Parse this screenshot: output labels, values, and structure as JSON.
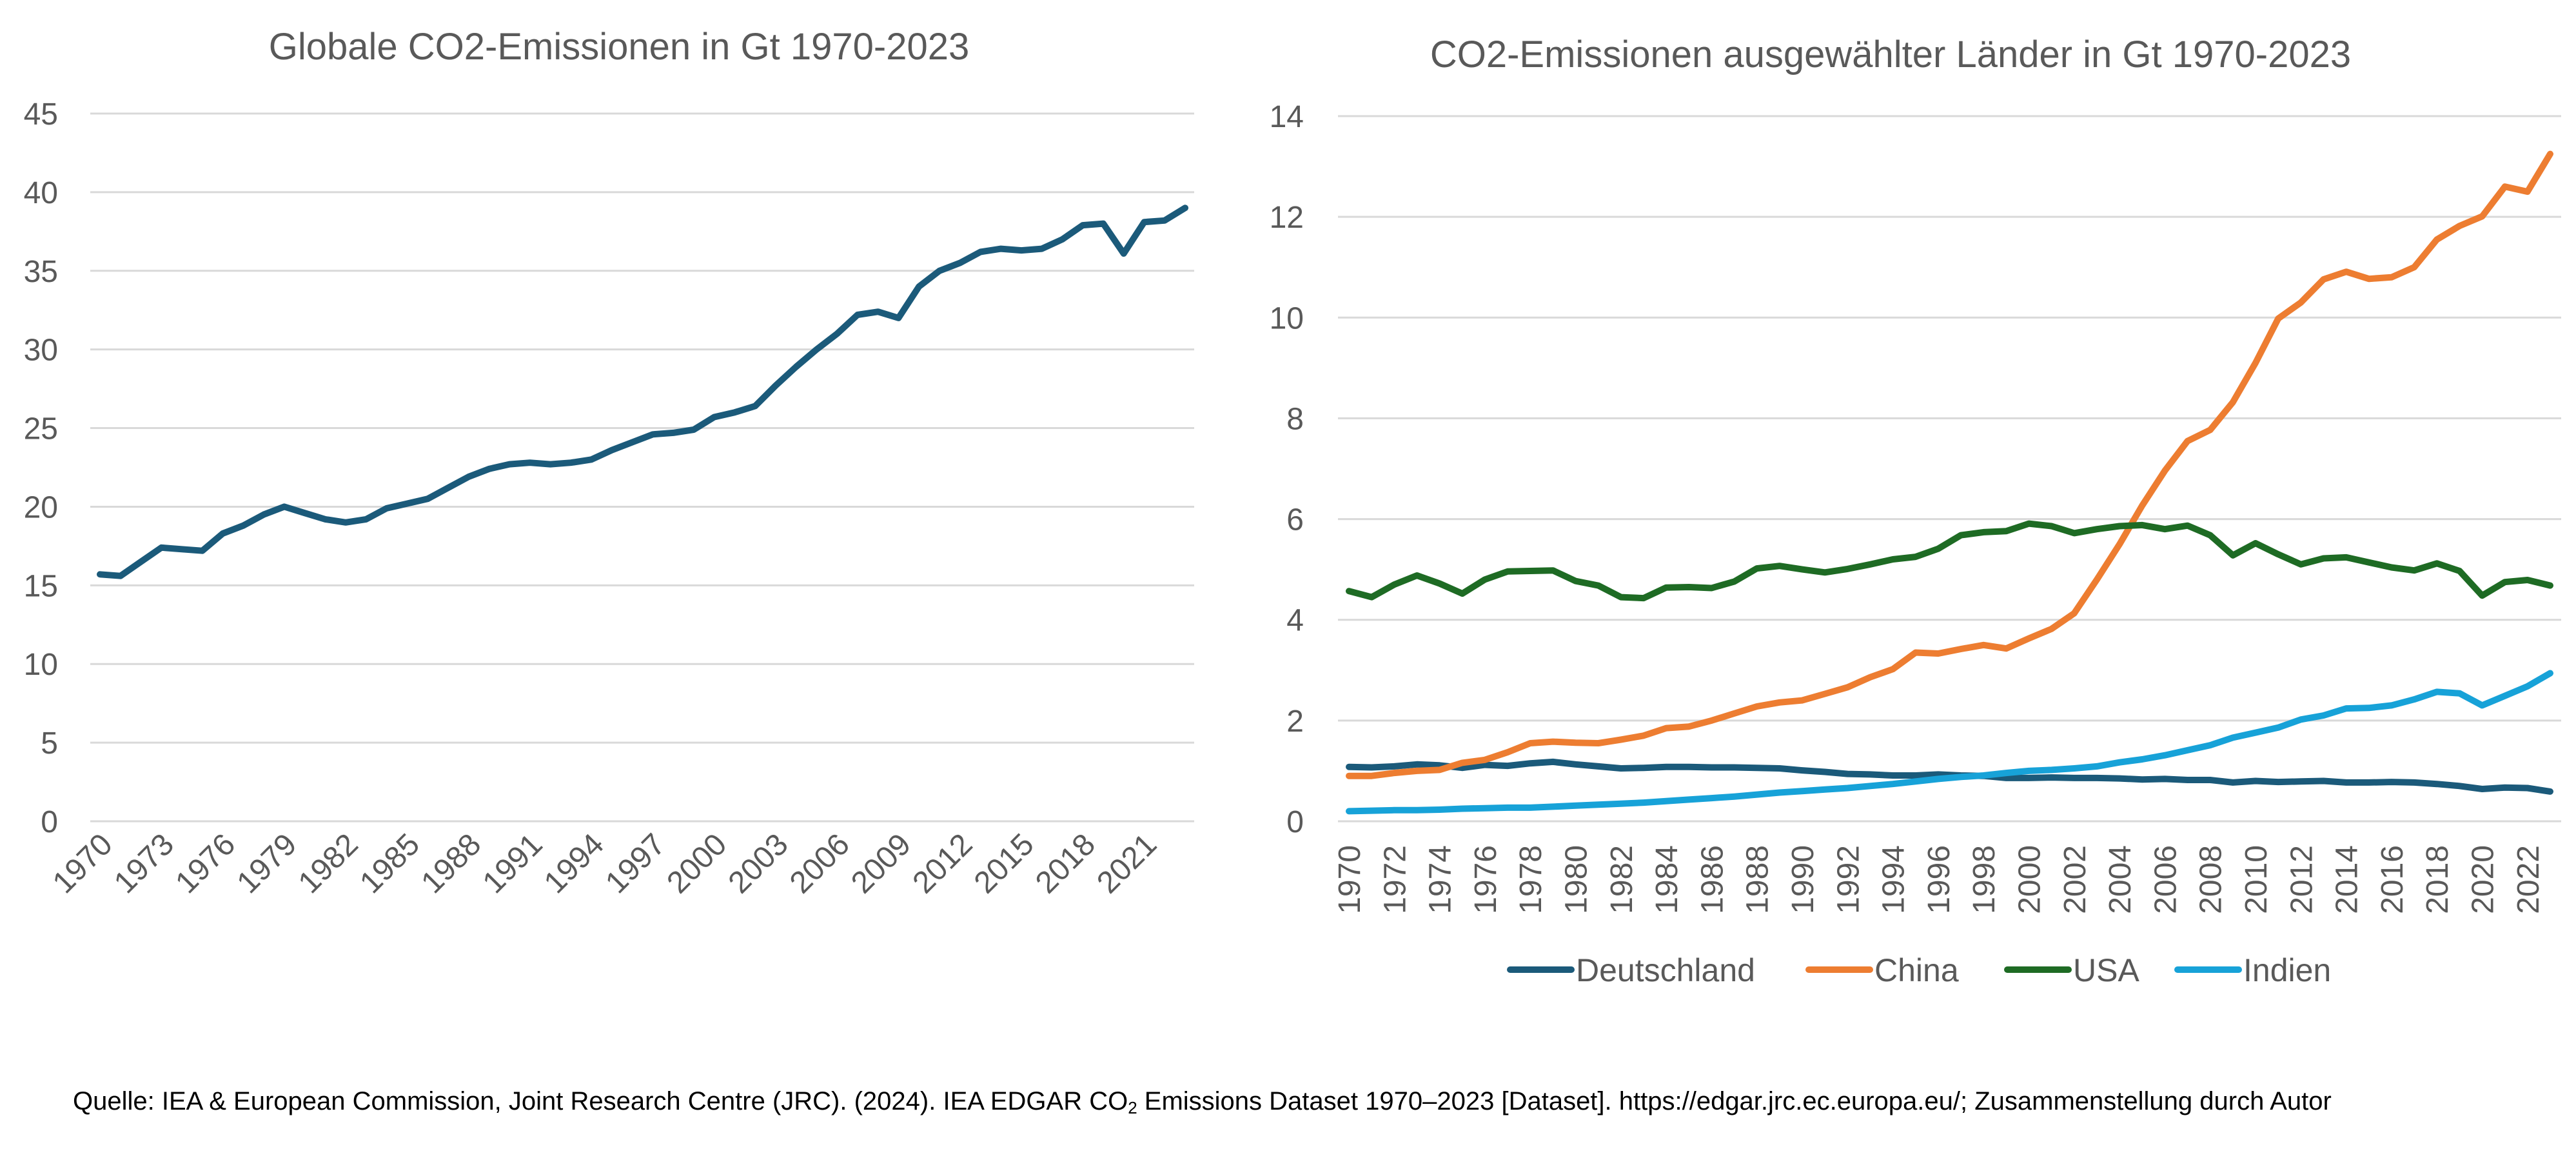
{
  "chart_data": [
    {
      "type": "line",
      "title": "Globale CO2-Emissionen in Gt 1970-2023",
      "ylim": [
        0,
        45
      ],
      "yticks": [
        0,
        5,
        10,
        15,
        20,
        25,
        30,
        35,
        40,
        45
      ],
      "xtick_labels": [
        "1970",
        "1973",
        "1976",
        "1979",
        "1982",
        "1985",
        "1988",
        "1991",
        "1994",
        "1997",
        "2000",
        "2003",
        "2006",
        "2009",
        "2012",
        "2015",
        "2018",
        "2021"
      ],
      "x_start": 1970,
      "x_end": 2023,
      "grid": true,
      "colors": [
        "#1b5a7a"
      ],
      "series": [
        {
          "values": [
            15.7,
            15.6,
            16.5,
            17.4,
            17.3,
            17.2,
            18.3,
            18.8,
            19.5,
            20.0,
            19.6,
            19.2,
            19.0,
            19.2,
            19.9,
            20.2,
            20.5,
            21.2,
            21.9,
            22.4,
            22.7,
            22.8,
            22.7,
            22.8,
            23.0,
            23.6,
            24.1,
            24.6,
            24.7,
            24.9,
            25.7,
            26.0,
            26.4,
            27.7,
            28.9,
            30.0,
            31.0,
            32.2,
            32.4,
            32.0,
            34.0,
            35.0,
            35.5,
            36.2,
            36.4,
            36.3,
            36.4,
            37.0,
            37.9,
            38.0,
            36.1,
            38.1,
            38.2,
            39.0
          ]
        }
      ]
    },
    {
      "type": "line",
      "title": "CO2-Emissionen ausgewählter Länder in Gt 1970-2023",
      "ylim": [
        0,
        14
      ],
      "yticks": [
        0,
        2,
        4,
        6,
        8,
        10,
        12,
        14
      ],
      "xtick_labels": [
        "1970",
        "1972",
        "1974",
        "1976",
        "1978",
        "1980",
        "1982",
        "1984",
        "1986",
        "1988",
        "1990",
        "1992",
        "1994",
        "1996",
        "1998",
        "2000",
        "2002",
        "2004",
        "2006",
        "2008",
        "2010",
        "2012",
        "2014",
        "2016",
        "2018",
        "2020",
        "2022"
      ],
      "x_start": 1970,
      "x_end": 2023,
      "grid": true,
      "legend": "bottom",
      "series": [
        {
          "name": "Deutschland",
          "color": "#1b5a7a",
          "values": [
            1.08,
            1.07,
            1.09,
            1.13,
            1.11,
            1.06,
            1.12,
            1.1,
            1.15,
            1.18,
            1.13,
            1.09,
            1.05,
            1.06,
            1.08,
            1.08,
            1.07,
            1.07,
            1.06,
            1.05,
            1.01,
            0.98,
            0.94,
            0.93,
            0.91,
            0.91,
            0.93,
            0.91,
            0.9,
            0.86,
            0.86,
            0.87,
            0.86,
            0.86,
            0.85,
            0.83,
            0.84,
            0.82,
            0.82,
            0.77,
            0.8,
            0.78,
            0.79,
            0.8,
            0.77,
            0.77,
            0.78,
            0.77,
            0.74,
            0.7,
            0.64,
            0.67,
            0.66,
            0.59
          ]
        },
        {
          "name": "China",
          "color": "#ed7d31",
          "values": [
            0.9,
            0.9,
            0.96,
            1.0,
            1.02,
            1.16,
            1.22,
            1.37,
            1.55,
            1.58,
            1.56,
            1.55,
            1.62,
            1.7,
            1.85,
            1.88,
            2.0,
            2.14,
            2.28,
            2.36,
            2.4,
            2.53,
            2.66,
            2.86,
            3.02,
            3.35,
            3.33,
            3.42,
            3.5,
            3.43,
            3.63,
            3.82,
            4.13,
            4.8,
            5.5,
            6.27,
            6.96,
            7.55,
            7.77,
            8.32,
            9.1,
            9.98,
            10.3,
            10.76,
            10.91,
            10.77,
            10.8,
            11.0,
            11.55,
            11.82,
            12.01,
            12.6,
            12.5,
            13.25
          ]
        },
        {
          "name": "USA",
          "color": "#1e6b24",
          "values": [
            4.57,
            4.45,
            4.7,
            4.88,
            4.72,
            4.52,
            4.8,
            4.96,
            4.97,
            4.98,
            4.77,
            4.68,
            4.45,
            4.43,
            4.64,
            4.65,
            4.63,
            4.76,
            5.02,
            5.07,
            5.0,
            4.94,
            5.01,
            5.1,
            5.2,
            5.25,
            5.41,
            5.68,
            5.74,
            5.76,
            5.91,
            5.86,
            5.72,
            5.8,
            5.86,
            5.88,
            5.8,
            5.87,
            5.68,
            5.28,
            5.52,
            5.3,
            5.1,
            5.22,
            5.24,
            5.14,
            5.04,
            4.98,
            5.12,
            4.97,
            4.48,
            4.75,
            4.79,
            4.68
          ]
        },
        {
          "name": "Indien",
          "color": "#17a2d8",
          "values": [
            0.2,
            0.21,
            0.22,
            0.22,
            0.23,
            0.25,
            0.26,
            0.27,
            0.27,
            0.29,
            0.31,
            0.33,
            0.35,
            0.37,
            0.4,
            0.43,
            0.46,
            0.49,
            0.53,
            0.57,
            0.6,
            0.63,
            0.66,
            0.7,
            0.74,
            0.79,
            0.84,
            0.88,
            0.91,
            0.96,
            1.0,
            1.02,
            1.05,
            1.09,
            1.17,
            1.23,
            1.31,
            1.41,
            1.51,
            1.66,
            1.76,
            1.86,
            2.02,
            2.1,
            2.24,
            2.25,
            2.3,
            2.42,
            2.57,
            2.54,
            2.3,
            2.49,
            2.68,
            2.94
          ]
        }
      ]
    }
  ],
  "source": {
    "text_before_sub": "Quelle: IEA & European Commission, Joint Research Centre (JRC). (2024). IEA EDGAR CO",
    "subscript": "2",
    "text_after_sub": " Emissions Dataset 1970–2023 [Dataset]. https://edgar.jrc.ec.europa.eu/; Zusammenstellung durch Autor"
  }
}
